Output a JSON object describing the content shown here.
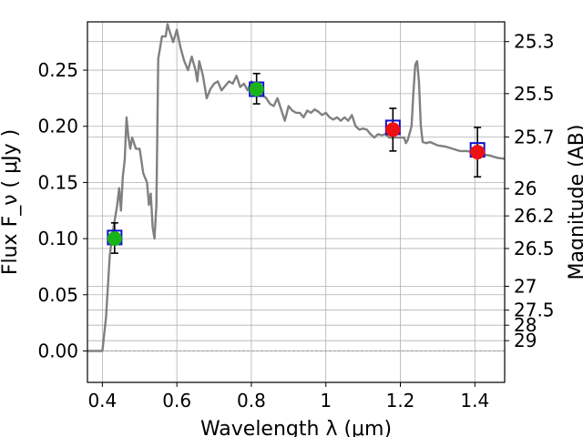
{
  "chart_data": {
    "type": "line",
    "xlabel": "Wavelength  λ (μm)",
    "ylabel": "Flux  F_ν  ( μJy )",
    "ylabel2": "Magnitude (AB)",
    "xlim": [
      0.36,
      1.48
    ],
    "ylim": [
      -0.028,
      0.293
    ],
    "grid": true,
    "x_ticks": [
      {
        "v": 0.4,
        "label": "0.4"
      },
      {
        "v": 0.6,
        "label": "0.6"
      },
      {
        "v": 0.8,
        "label": "0.8"
      },
      {
        "v": 1.0,
        "label": "1"
      },
      {
        "v": 1.2,
        "label": "1.2"
      },
      {
        "v": 1.4,
        "label": "1.4"
      }
    ],
    "y_ticks": [
      {
        "v": 0.0,
        "label": "0.00"
      },
      {
        "v": 0.05,
        "label": "0.05"
      },
      {
        "v": 0.1,
        "label": "0.10"
      },
      {
        "v": 0.15,
        "label": "0.15"
      },
      {
        "v": 0.2,
        "label": "0.20"
      },
      {
        "v": 0.25,
        "label": "0.25"
      }
    ],
    "mag_ticks": [
      {
        "mag": 25.3,
        "label": "25.3"
      },
      {
        "mag": 25.5,
        "label": "25.5"
      },
      {
        "mag": 25.7,
        "label": "25.7"
      },
      {
        "mag": 26.0,
        "label": "26"
      },
      {
        "mag": 26.2,
        "label": "26.2"
      },
      {
        "mag": 26.5,
        "label": "26.5"
      },
      {
        "mag": 27.0,
        "label": "27"
      },
      {
        "mag": 27.5,
        "label": "27.5"
      },
      {
        "mag": 28.0,
        "label": "28"
      },
      {
        "mag": 29.0,
        "label": "29"
      }
    ],
    "model": {
      "color": "#808080",
      "points": [
        [
          0.36,
          0.0
        ],
        [
          0.4,
          0.0
        ],
        [
          0.41,
          0.03
        ],
        [
          0.42,
          0.085
        ],
        [
          0.43,
          0.11
        ],
        [
          0.44,
          0.13
        ],
        [
          0.445,
          0.145
        ],
        [
          0.45,
          0.125
        ],
        [
          0.455,
          0.155
        ],
        [
          0.46,
          0.17
        ],
        [
          0.465,
          0.208
        ],
        [
          0.47,
          0.19
        ],
        [
          0.475,
          0.18
        ],
        [
          0.48,
          0.19
        ],
        [
          0.49,
          0.18
        ],
        [
          0.5,
          0.18
        ],
        [
          0.51,
          0.158
        ],
        [
          0.52,
          0.15
        ],
        [
          0.525,
          0.13
        ],
        [
          0.53,
          0.14
        ],
        [
          0.535,
          0.11
        ],
        [
          0.54,
          0.1
        ],
        [
          0.545,
          0.13
        ],
        [
          0.55,
          0.26
        ],
        [
          0.56,
          0.28
        ],
        [
          0.57,
          0.28
        ],
        [
          0.575,
          0.291
        ],
        [
          0.58,
          0.285
        ],
        [
          0.59,
          0.275
        ],
        [
          0.6,
          0.286
        ],
        [
          0.61,
          0.27
        ],
        [
          0.62,
          0.258
        ],
        [
          0.63,
          0.25
        ],
        [
          0.64,
          0.262
        ],
        [
          0.65,
          0.25
        ],
        [
          0.655,
          0.24
        ],
        [
          0.66,
          0.258
        ],
        [
          0.67,
          0.245
        ],
        [
          0.68,
          0.225
        ],
        [
          0.69,
          0.233
        ],
        [
          0.7,
          0.238
        ],
        [
          0.71,
          0.24
        ],
        [
          0.72,
          0.232
        ],
        [
          0.73,
          0.236
        ],
        [
          0.74,
          0.24
        ],
        [
          0.75,
          0.238
        ],
        [
          0.76,
          0.245
        ],
        [
          0.77,
          0.235
        ],
        [
          0.78,
          0.238
        ],
        [
          0.79,
          0.232
        ],
        [
          0.8,
          0.24
        ],
        [
          0.81,
          0.236
        ],
        [
          0.82,
          0.232
        ],
        [
          0.83,
          0.228
        ],
        [
          0.84,
          0.225
        ],
        [
          0.85,
          0.22
        ],
        [
          0.86,
          0.218
        ],
        [
          0.87,
          0.225
        ],
        [
          0.88,
          0.215
        ],
        [
          0.89,
          0.205
        ],
        [
          0.9,
          0.218
        ],
        [
          0.91,
          0.214
        ],
        [
          0.92,
          0.212
        ],
        [
          0.93,
          0.212
        ],
        [
          0.94,
          0.208
        ],
        [
          0.95,
          0.214
        ],
        [
          0.96,
          0.212
        ],
        [
          0.97,
          0.215
        ],
        [
          0.98,
          0.213
        ],
        [
          0.99,
          0.21
        ],
        [
          1.0,
          0.212
        ],
        [
          1.01,
          0.208
        ],
        [
          1.02,
          0.206
        ],
        [
          1.03,
          0.208
        ],
        [
          1.04,
          0.205
        ],
        [
          1.05,
          0.208
        ],
        [
          1.06,
          0.205
        ],
        [
          1.07,
          0.21
        ],
        [
          1.08,
          0.2
        ],
        [
          1.09,
          0.197
        ],
        [
          1.1,
          0.198
        ],
        [
          1.11,
          0.197
        ],
        [
          1.12,
          0.193
        ],
        [
          1.13,
          0.19
        ],
        [
          1.14,
          0.193
        ],
        [
          1.15,
          0.192
        ],
        [
          1.16,
          0.193
        ],
        [
          1.17,
          0.19
        ],
        [
          1.18,
          0.19
        ],
        [
          1.19,
          0.19
        ],
        [
          1.2,
          0.19
        ],
        [
          1.21,
          0.19
        ],
        [
          1.215,
          0.185
        ],
        [
          1.22,
          0.188
        ],
        [
          1.23,
          0.2
        ],
        [
          1.235,
          0.23
        ],
        [
          1.24,
          0.255
        ],
        [
          1.245,
          0.258
        ],
        [
          1.25,
          0.24
        ],
        [
          1.255,
          0.2
        ],
        [
          1.26,
          0.186
        ],
        [
          1.27,
          0.185
        ],
        [
          1.28,
          0.186
        ],
        [
          1.3,
          0.183
        ],
        [
          1.32,
          0.182
        ],
        [
          1.34,
          0.18
        ],
        [
          1.36,
          0.178
        ],
        [
          1.38,
          0.178
        ],
        [
          1.4,
          0.176
        ],
        [
          1.42,
          0.175
        ],
        [
          1.44,
          0.174
        ],
        [
          1.46,
          0.172
        ],
        [
          1.48,
          0.171
        ]
      ]
    },
    "series": [
      {
        "marker": "square",
        "color": "#1010cc",
        "points": [
          {
            "x": 0.433,
            "y": 0.101
          },
          {
            "x": 0.814,
            "y": 0.233
          },
          {
            "x": 1.18,
            "y": 0.199
          },
          {
            "x": 1.407,
            "y": 0.179
          }
        ]
      },
      {
        "marker": "circle",
        "color": "#19b319",
        "points": [
          {
            "x": 0.433,
            "y": 0.1
          },
          {
            "x": 0.814,
            "y": 0.233
          }
        ]
      },
      {
        "marker": "circle",
        "color": "#ee1111",
        "points": [
          {
            "x": 1.18,
            "y": 0.197
          },
          {
            "x": 1.407,
            "y": 0.177
          }
        ]
      }
    ],
    "errorbars": [
      {
        "x": 0.433,
        "y": 0.1,
        "lo": 0.087,
        "hi": 0.114
      },
      {
        "x": 0.814,
        "y": 0.233,
        "lo": 0.22,
        "hi": 0.247
      },
      {
        "x": 1.18,
        "y": 0.197,
        "lo": 0.178,
        "hi": 0.216
      },
      {
        "x": 1.407,
        "y": 0.177,
        "lo": 0.155,
        "hi": 0.199
      }
    ]
  }
}
